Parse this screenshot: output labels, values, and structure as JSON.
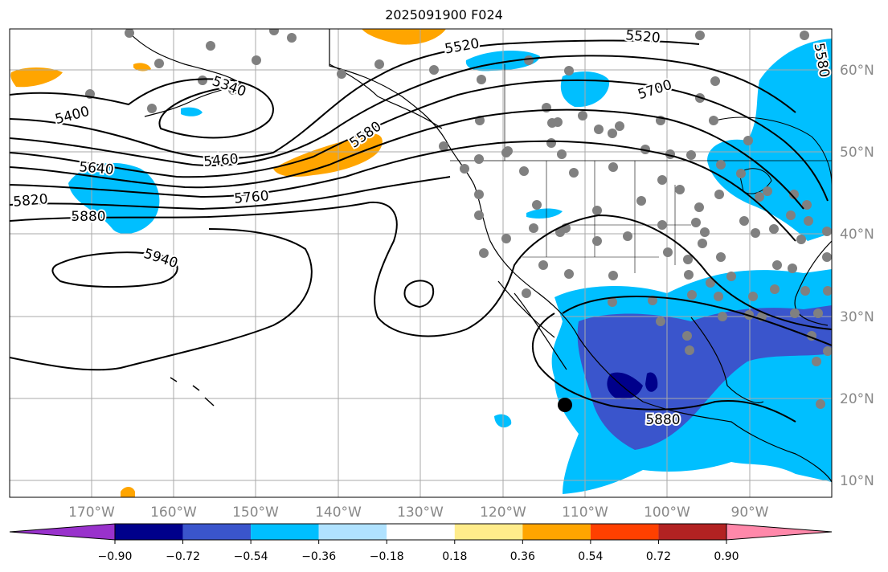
{
  "title": "2025091900 F024",
  "lon_labels": [
    "170°W",
    "160°W",
    "150°W",
    "140°W",
    "130°W",
    "120°W",
    "110°W",
    "100°W",
    "90°W"
  ],
  "lat_labels": [
    "60°N",
    "50°N",
    "40°N",
    "30°N",
    "20°N",
    "10°N"
  ],
  "contour_labels": [
    "5400",
    "5520",
    "5580",
    "5640",
    "5700",
    "5760",
    "5820",
    "5880",
    "5940",
    "5460",
    "5340",
    "5520",
    "5580",
    "5880"
  ],
  "colorbar": {
    "tick_labels": [
      "−0.90",
      "−0.72",
      "−0.54",
      "−0.36",
      "−0.18",
      "0.18",
      "0.36",
      "0.54",
      "0.72",
      "0.90"
    ],
    "colors": [
      "#9932cc",
      "#00008b",
      "#3a55cc",
      "#00bfff",
      "#b0e2ff",
      "#ffffff",
      "#ffec8b",
      "#ffa500",
      "#ff4000",
      "#b22222",
      "#ff88aa"
    ]
  },
  "colors": {
    "contour": "#000000",
    "grid": "#aaaaaa",
    "station": "#808080",
    "label_axis": "#888888"
  }
}
